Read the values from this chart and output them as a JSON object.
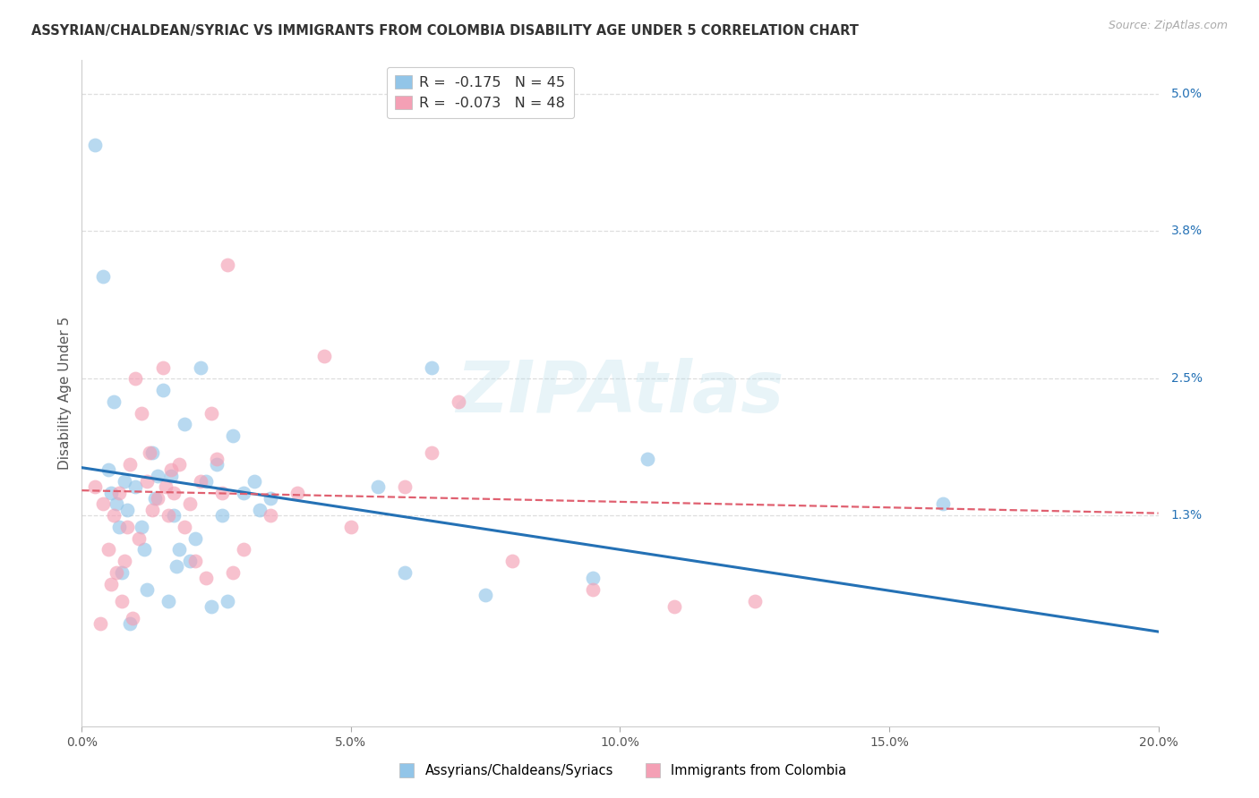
{
  "title": "ASSYRIAN/CHALDEAN/SYRIAC VS IMMIGRANTS FROM COLOMBIA DISABILITY AGE UNDER 5 CORRELATION CHART",
  "source": "Source: ZipAtlas.com",
  "xlabel_tick_vals": [
    0.0,
    5.0,
    10.0,
    15.0,
    20.0
  ],
  "ylabel": "Disability Age Under 5",
  "ylabel_right_vals": [
    5.0,
    3.8,
    2.5,
    1.3
  ],
  "xmin": 0.0,
  "xmax": 20.0,
  "ymin": -0.55,
  "ymax": 5.3,
  "watermark": "ZIPAtlas",
  "legend_blue_r": "-0.175",
  "legend_blue_n": "45",
  "legend_pink_r": "-0.073",
  "legend_pink_n": "48",
  "blue_color": "#92C5E8",
  "pink_color": "#F4A0B5",
  "blue_line_color": "#2471B5",
  "pink_line_color": "#E06070",
  "legend_label_blue": "Assyrians/Chaldeans/Syriacs",
  "legend_label_pink": "Immigrants from Colombia",
  "blue_scatter_x": [
    0.25,
    0.4,
    0.5,
    0.55,
    0.6,
    0.65,
    0.7,
    0.75,
    0.8,
    0.85,
    0.9,
    1.0,
    1.1,
    1.15,
    1.2,
    1.3,
    1.35,
    1.4,
    1.5,
    1.6,
    1.65,
    1.7,
    1.75,
    1.8,
    1.9,
    2.0,
    2.1,
    2.2,
    2.3,
    2.4,
    2.5,
    2.6,
    2.7,
    2.8,
    3.0,
    3.2,
    3.3,
    3.5,
    5.5,
    6.0,
    6.5,
    7.5,
    9.5,
    10.5,
    16.0
  ],
  "blue_scatter_y": [
    4.55,
    3.4,
    1.7,
    1.5,
    2.3,
    1.4,
    1.2,
    0.8,
    1.6,
    1.35,
    0.35,
    1.55,
    1.2,
    1.0,
    0.65,
    1.85,
    1.45,
    1.65,
    2.4,
    0.55,
    1.65,
    1.3,
    0.85,
    1.0,
    2.1,
    0.9,
    1.1,
    2.6,
    1.6,
    0.5,
    1.75,
    1.3,
    0.55,
    2.0,
    1.5,
    1.6,
    1.35,
    1.45,
    1.55,
    0.8,
    2.6,
    0.6,
    0.75,
    1.8,
    1.4
  ],
  "pink_scatter_x": [
    0.25,
    0.35,
    0.4,
    0.5,
    0.55,
    0.6,
    0.65,
    0.7,
    0.75,
    0.8,
    0.85,
    0.9,
    0.95,
    1.0,
    1.05,
    1.1,
    1.2,
    1.25,
    1.3,
    1.4,
    1.5,
    1.55,
    1.6,
    1.65,
    1.7,
    1.8,
    1.9,
    2.0,
    2.1,
    2.2,
    2.3,
    2.4,
    2.5,
    2.6,
    2.7,
    2.8,
    3.0,
    3.5,
    4.0,
    4.5,
    5.0,
    6.0,
    6.5,
    7.0,
    8.0,
    9.5,
    11.0,
    12.5
  ],
  "pink_scatter_y": [
    1.55,
    0.35,
    1.4,
    1.0,
    0.7,
    1.3,
    0.8,
    1.5,
    0.55,
    0.9,
    1.2,
    1.75,
    0.4,
    2.5,
    1.1,
    2.2,
    1.6,
    1.85,
    1.35,
    1.45,
    2.6,
    1.55,
    1.3,
    1.7,
    1.5,
    1.75,
    1.2,
    1.4,
    0.9,
    1.6,
    0.75,
    2.2,
    1.8,
    1.5,
    3.5,
    0.8,
    1.0,
    1.3,
    1.5,
    2.7,
    1.2,
    1.55,
    1.85,
    2.3,
    0.9,
    0.65,
    0.5,
    0.55
  ],
  "blue_line_y0": 1.72,
  "blue_line_y1": 0.28,
  "pink_line_y0": 1.52,
  "pink_line_y1": 1.32,
  "grid_color": "#DEDEDE",
  "background_color": "#FFFFFF"
}
